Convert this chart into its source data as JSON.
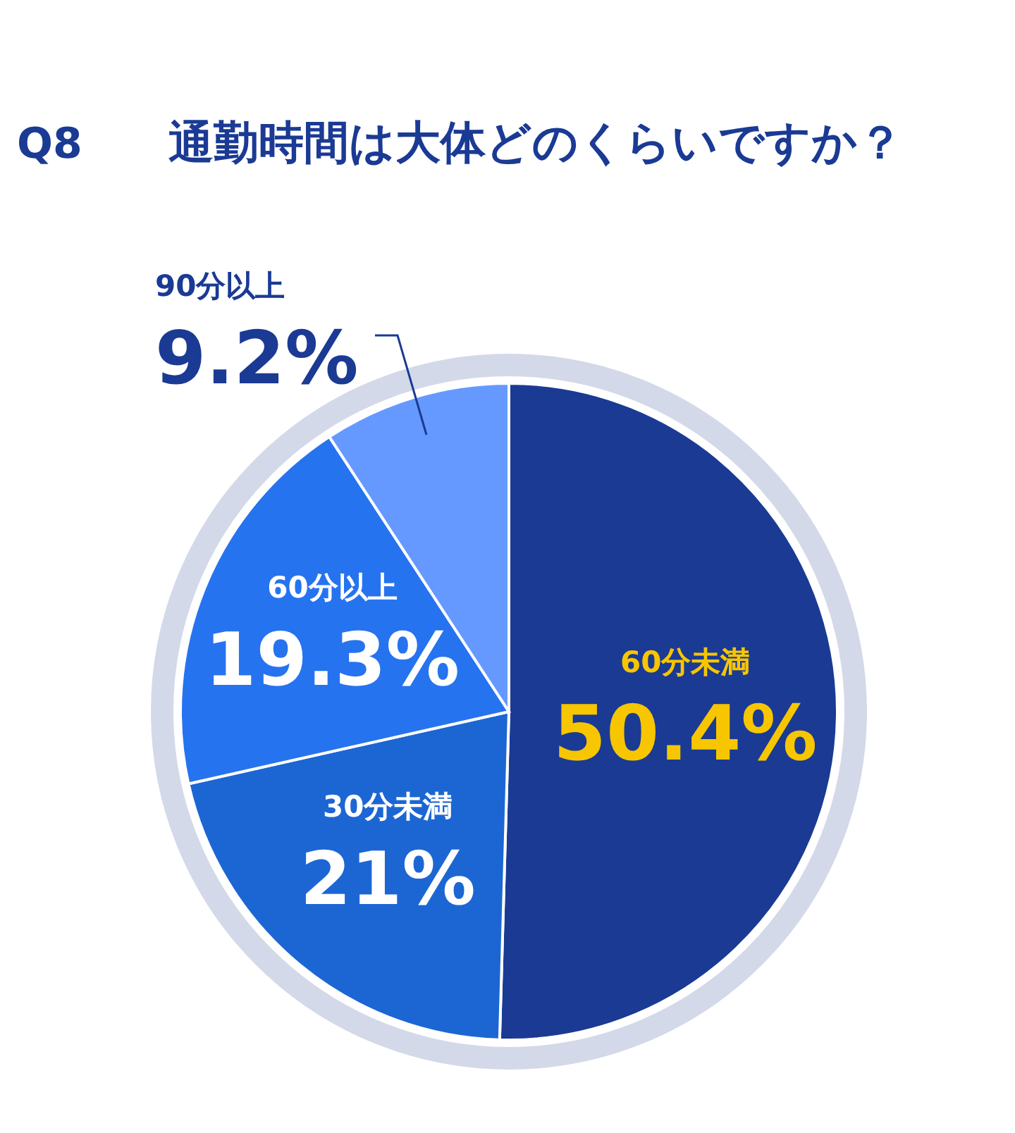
{
  "chart_data": {
    "type": "pie",
    "title": "通勤時間は大体どのくらいですか？",
    "annotations": [
      "Q8"
    ],
    "categories": [
      "60分未満",
      "30分未満",
      "60分以上",
      "90分以上"
    ],
    "values": [
      50.4,
      21,
      19.3,
      9.2
    ],
    "colors": [
      "#1a3a94",
      "#1c66d4",
      "#2673f0",
      "#6699ff"
    ],
    "value_labels": [
      "50.4%",
      "21%",
      "19.3%",
      "9.2%"
    ],
    "legend": false
  }
}
